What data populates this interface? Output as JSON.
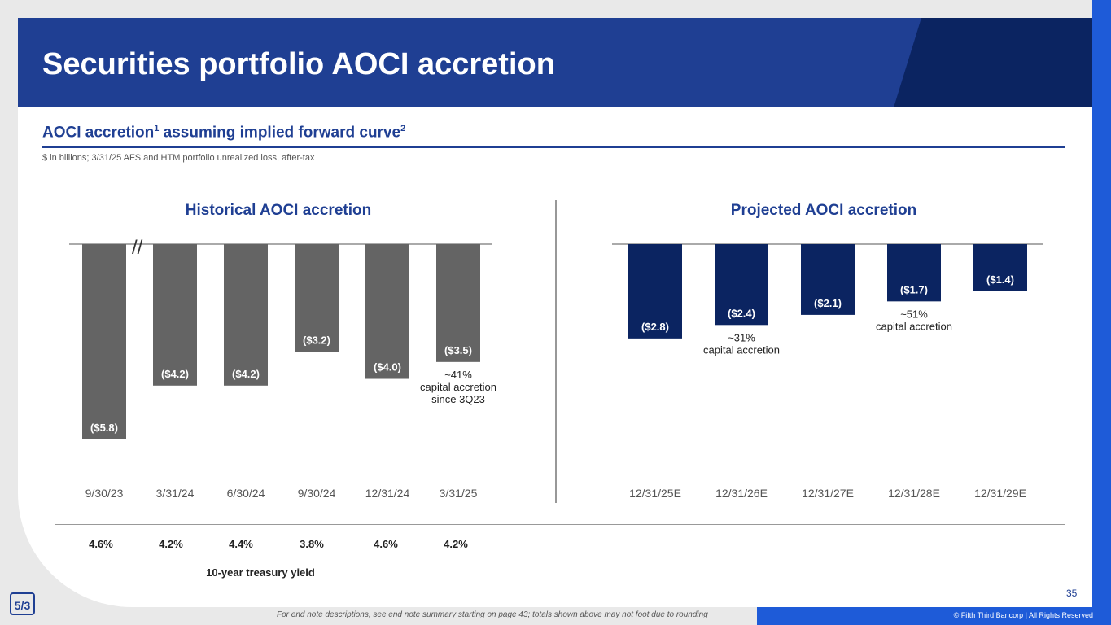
{
  "title": "Securities portfolio AOCI accretion",
  "subtitle": {
    "text": "AOCI accretion",
    "sup1": "1",
    "mid": " assuming implied forward curve",
    "sup2": "2"
  },
  "units_note": "$ in billions; 3/31/25 AFS and HTM portfolio unrealized loss, after-tax",
  "colors": {
    "navy": "#1f3f93",
    "dark_navy": "#0b2461",
    "gray_bar": "#646464",
    "accent_blue": "#1e5bd8"
  },
  "chart_data": [
    {
      "type": "bar",
      "title": "Historical AOCI accretion",
      "categories": [
        "9/30/23",
        "3/31/24",
        "6/30/24",
        "9/30/24",
        "12/31/24",
        "3/31/25"
      ],
      "values": [
        -5.8,
        -4.2,
        -4.2,
        -3.2,
        -4.0,
        -3.5
      ],
      "labels": [
        "($5.8)",
        "($4.2)",
        "($4.2)",
        "($3.2)",
        "($4.0)",
        "($3.5)"
      ],
      "ylim": [
        -6.5,
        0
      ],
      "axis_break": "//",
      "annotation": "~41%\ncapital accretion\nsince 3Q23"
    },
    {
      "type": "bar",
      "title": "Projected AOCI accretion",
      "categories": [
        "12/31/25E",
        "12/31/26E",
        "12/31/27E",
        "12/31/28E",
        "12/31/29E"
      ],
      "values": [
        -2.8,
        -2.4,
        -2.1,
        -1.7,
        -1.4
      ],
      "labels": [
        "($2.8)",
        "($2.4)",
        "($2.1)",
        "($1.7)",
        "($1.4)"
      ],
      "ylim": [
        -6.5,
        0
      ],
      "annotations": [
        {
          "index": 1,
          "text": "~31%\ncapital accretion"
        },
        {
          "index": 3,
          "text": "~51%\ncapital accretion"
        }
      ]
    }
  ],
  "treasury_yields": [
    "4.6%",
    "4.2%",
    "4.4%",
    "3.8%",
    "4.6%",
    "4.2%"
  ],
  "yield_label": "10-year treasury yield",
  "footer_note": "For end note descriptions, see end note summary starting on page 43; totals shown above may not foot due to rounding",
  "copyright": "© Fifth Third Bancorp | All Rights Reserved",
  "page_number": "35",
  "logo_text": "5/3"
}
